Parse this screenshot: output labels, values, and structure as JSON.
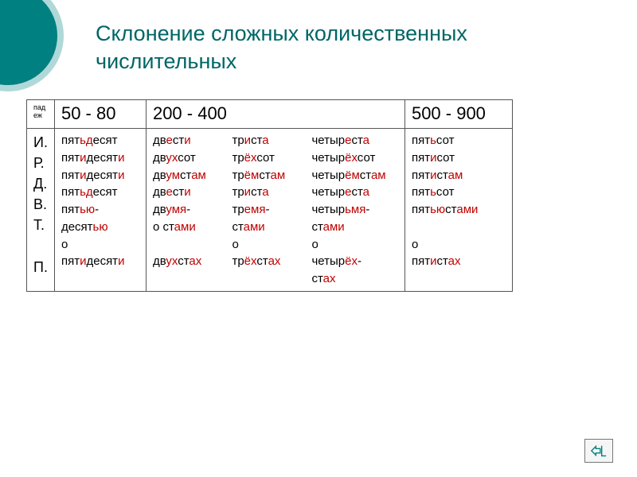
{
  "title": {
    "line1": "Склонение сложных количественных",
    "line2": "числительных"
  },
  "accent_color": "#008080",
  "highlight_color": "#c00000",
  "table": {
    "case_header": "пад\nеж",
    "header_50": "50 - 80",
    "header_200": "200 - 400",
    "header_500": "500 - 900",
    "cases": [
      "И.",
      "Р.",
      "Д.",
      "В.",
      "Т.",
      "",
      "П."
    ],
    "col_50": [
      [
        [
          "пят",
          0
        ],
        [
          "ьд",
          1
        ],
        [
          "есят",
          0
        ]
      ],
      [
        [
          "пят",
          0
        ],
        [
          "и",
          1
        ],
        [
          "десят",
          0
        ],
        [
          "и",
          1
        ]
      ],
      [
        [
          "пят",
          0
        ],
        [
          "и",
          1
        ],
        [
          "десят",
          0
        ],
        [
          "и",
          1
        ]
      ],
      [
        [
          "пят",
          0
        ],
        [
          "ьд",
          1
        ],
        [
          "есят",
          0
        ]
      ],
      [
        [
          "пят",
          0
        ],
        [
          "ью",
          1
        ],
        [
          "-",
          0
        ]
      ],
      [
        [
          "десят",
          0
        ],
        [
          "ью",
          1
        ]
      ],
      [
        [
          "о",
          0
        ]
      ],
      [
        [
          "пят",
          0
        ],
        [
          "и",
          1
        ],
        [
          "десят",
          0
        ],
        [
          "и",
          1
        ]
      ]
    ],
    "col_200a": [
      [
        [
          "дв",
          0
        ],
        [
          "е",
          1
        ],
        [
          "ст",
          0
        ],
        [
          "и",
          1
        ]
      ],
      [
        [
          "дв",
          0
        ],
        [
          "ух",
          1
        ],
        [
          "сот",
          0
        ]
      ],
      [
        [
          "дв",
          0
        ],
        [
          "ум",
          1
        ],
        [
          "ст",
          0
        ],
        [
          "ам",
          1
        ]
      ],
      [
        [
          "дв",
          0
        ],
        [
          "е",
          1
        ],
        [
          "ст",
          0
        ],
        [
          "и",
          1
        ]
      ],
      [
        [
          "дв",
          0
        ],
        [
          "умя",
          1
        ],
        [
          "-",
          0
        ]
      ],
      [
        [
          "о ст",
          0
        ],
        [
          "ами",
          1
        ]
      ],
      [
        [
          " ",
          0
        ]
      ],
      [
        [
          "дв",
          0
        ],
        [
          "ух",
          1
        ],
        [
          "ст",
          0
        ],
        [
          "ах",
          1
        ]
      ]
    ],
    "col_200b": [
      [
        [
          "тр",
          0
        ],
        [
          "и",
          1
        ],
        [
          "ст",
          0
        ],
        [
          "а",
          1
        ]
      ],
      [
        [
          "тр",
          0
        ],
        [
          "ёх",
          1
        ],
        [
          "сот",
          0
        ]
      ],
      [
        [
          "тр",
          0
        ],
        [
          "ём",
          1
        ],
        [
          "ст",
          0
        ],
        [
          "ам",
          1
        ]
      ],
      [
        [
          "тр",
          0
        ],
        [
          "и",
          1
        ],
        [
          "ст",
          0
        ],
        [
          "а",
          1
        ]
      ],
      [
        [
          "тр",
          0
        ],
        [
          "емя",
          1
        ],
        [
          "-",
          0
        ]
      ],
      [
        [
          "ст",
          0
        ],
        [
          "ами",
          1
        ]
      ],
      [
        [
          "о",
          0
        ]
      ],
      [
        [
          "тр",
          0
        ],
        [
          "ёх",
          1
        ],
        [
          "ст",
          0
        ],
        [
          "ах",
          1
        ]
      ]
    ],
    "col_200c": [
      [
        [
          "четыр",
          0
        ],
        [
          "е",
          1
        ],
        [
          "ст",
          0
        ],
        [
          "а",
          1
        ]
      ],
      [
        [
          "четыр",
          0
        ],
        [
          "ёх",
          1
        ],
        [
          "сот",
          0
        ]
      ],
      [
        [
          "четыр",
          0
        ],
        [
          "ём",
          1
        ],
        [
          "ст",
          0
        ],
        [
          "ам",
          1
        ]
      ],
      [
        [
          "четыр",
          0
        ],
        [
          "е",
          1
        ],
        [
          "ст",
          0
        ],
        [
          "а",
          1
        ]
      ],
      [
        [
          "четыр",
          0
        ],
        [
          "ьмя",
          1
        ],
        [
          "-",
          0
        ]
      ],
      [
        [
          "ст",
          0
        ],
        [
          "ами",
          1
        ]
      ],
      [
        [
          "о",
          0
        ]
      ],
      [
        [
          "четыр",
          0
        ],
        [
          "ёх",
          1
        ],
        [
          "-",
          0
        ]
      ],
      [
        [
          "ст",
          0
        ],
        [
          "ах",
          1
        ]
      ]
    ],
    "col_500": [
      [
        [
          "пят",
          0
        ],
        [
          "ь",
          1
        ],
        [
          "сот",
          0
        ]
      ],
      [
        [
          "пят",
          0
        ],
        [
          "и",
          1
        ],
        [
          "сот",
          0
        ]
      ],
      [
        [
          "пят",
          0
        ],
        [
          "и",
          1
        ],
        [
          "ст",
          0
        ],
        [
          "ам",
          1
        ]
      ],
      [
        [
          "пят",
          0
        ],
        [
          "ь",
          1
        ],
        [
          "сот",
          0
        ]
      ],
      [
        [
          "пят",
          0
        ],
        [
          "ью",
          1
        ],
        [
          "ст",
          0
        ],
        [
          "ами",
          1
        ]
      ],
      [
        [
          " ",
          0
        ]
      ],
      [
        [
          "о",
          0
        ]
      ],
      [
        [
          "пят",
          0
        ],
        [
          "и",
          1
        ],
        [
          "ст",
          0
        ],
        [
          "ах",
          1
        ]
      ]
    ]
  },
  "nav_icon": "home-arrow"
}
